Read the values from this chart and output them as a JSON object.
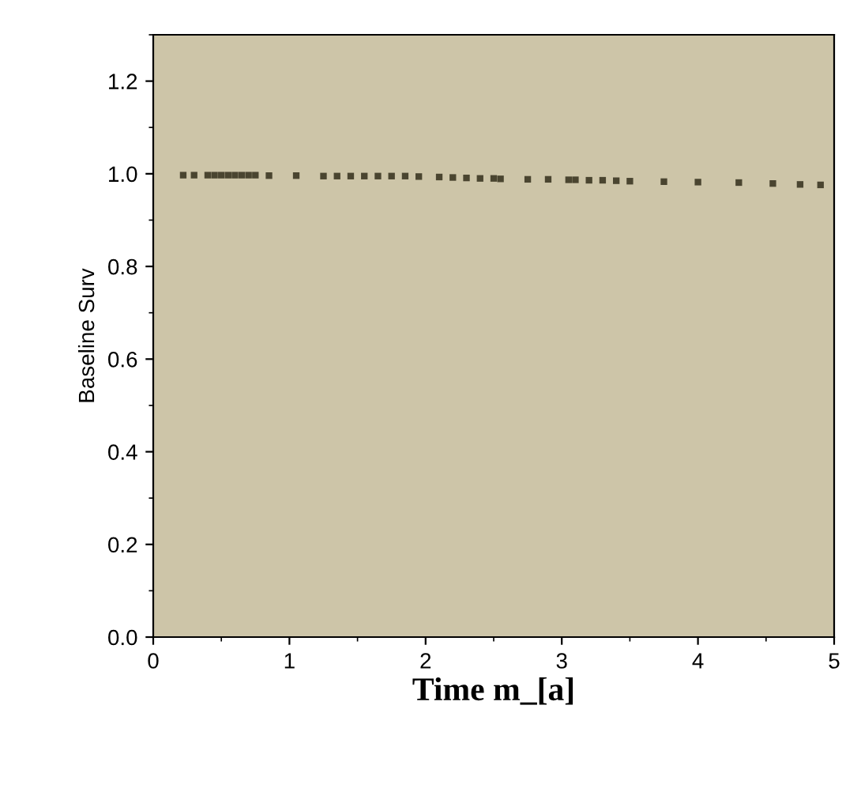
{
  "chart_data": {
    "type": "scatter",
    "xlabel": "Time m_[a]",
    "ylabel": "Baseline Surv",
    "x": [
      0.22,
      0.3,
      0.4,
      0.45,
      0.5,
      0.55,
      0.6,
      0.65,
      0.7,
      0.75,
      0.85,
      1.05,
      1.25,
      1.35,
      1.45,
      1.55,
      1.65,
      1.75,
      1.85,
      1.95,
      2.1,
      2.2,
      2.3,
      2.4,
      2.5,
      2.55,
      2.75,
      2.9,
      3.05,
      3.1,
      3.2,
      3.3,
      3.4,
      3.5,
      3.75,
      4.0,
      4.3,
      4.55,
      4.75,
      4.9
    ],
    "series": [
      {
        "color": "#4a4530",
        "values": [
          0.997,
          0.997,
          0.997,
          0.997,
          0.997,
          0.997,
          0.997,
          0.997,
          0.997,
          0.997,
          0.996,
          0.996,
          0.995,
          0.995,
          0.995,
          0.995,
          0.995,
          0.995,
          0.995,
          0.994,
          0.993,
          0.992,
          0.991,
          0.99,
          0.99,
          0.989,
          0.988,
          0.988,
          0.987,
          0.987,
          0.986,
          0.986,
          0.985,
          0.984,
          0.983,
          0.982,
          0.981,
          0.979,
          0.977,
          0.976
        ]
      }
    ],
    "xlim": [
      0,
      5
    ],
    "ylim": [
      0,
      1.3
    ],
    "xticks": [
      0,
      1,
      2,
      3,
      4,
      5
    ],
    "yticks": [
      {
        "value": 0,
        "label": "0.0"
      },
      0.2,
      0.4,
      0.6,
      0.8,
      {
        "value": 1,
        "label": "1.0"
      },
      1.2
    ],
    "marker": "square",
    "grid": false,
    "legend": false
  }
}
